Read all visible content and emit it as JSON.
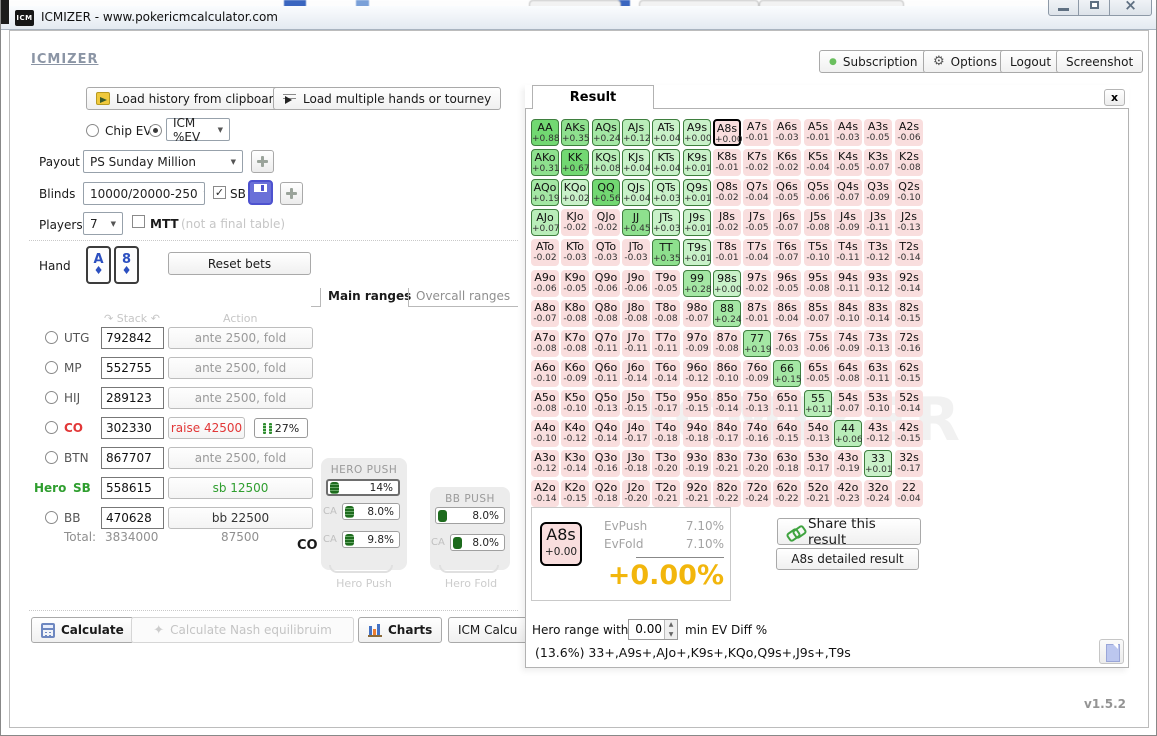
{
  "window": {
    "title": "ICMIZER - www.pokericmcalculator.com",
    "icon": "ICM",
    "version": "v1.5.2"
  },
  "header": {
    "logo": "ICMIZER",
    "subscription": "Subscription",
    "options": "Options",
    "logout": "Logout",
    "screenshot": "Screenshot"
  },
  "toolbar": {
    "load_history": "Load history from clipboard",
    "load_multiple": "Load multiple hands or tourney"
  },
  "settings": {
    "chip_ev": "Chip EV",
    "icm_ev": "ICM %EV",
    "payout_label": "Payout",
    "payout_value": "PS Sunday Million",
    "blinds_label": "Blinds",
    "blinds_value": "10000/20000-250",
    "sb": "SB",
    "players_label": "Players",
    "players_value": "7",
    "mtt": "MTT",
    "mtt_note": "(not a final table)"
  },
  "hand": {
    "label": "Hand",
    "cards": [
      {
        "rank": "A",
        "suit": "♦"
      },
      {
        "rank": "8",
        "suit": "♦"
      }
    ],
    "reset": "Reset bets"
  },
  "range_tabs": {
    "main": "Main ranges",
    "overcall": "Overcall ranges"
  },
  "table": {
    "stack_header": "Stack",
    "action_header": "Action",
    "rows": [
      {
        "pos": "UTG",
        "stack": "792842",
        "action": "ante 2500, fold",
        "kind": "fold",
        "radio": true
      },
      {
        "pos": "MP",
        "stack": "552755",
        "action": "ante 2500, fold",
        "kind": "fold",
        "radio": true
      },
      {
        "pos": "HIJ",
        "stack": "289123",
        "action": "ante 2500, fold",
        "kind": "fold",
        "radio": true
      },
      {
        "pos": "CO",
        "stack": "302330",
        "action": "raise 42500",
        "kind": "raise",
        "radio": true,
        "pct": "27%"
      },
      {
        "pos": "BTN",
        "stack": "867707",
        "action": "ante 2500, fold",
        "kind": "fold",
        "radio": true
      },
      {
        "pos": "SB",
        "prefix": "Hero",
        "stack": "558615",
        "action": "sb 12500",
        "kind": "hero",
        "radio": false
      },
      {
        "pos": "BB",
        "stack": "470628",
        "action": "bb 22500",
        "kind": "bb",
        "radio": true
      }
    ],
    "total_label": "Total:",
    "total_stack": "3834000",
    "total_bets": "87500"
  },
  "push": {
    "co": "CO",
    "hero_title": "HERO PUSH",
    "hero_main": "14%",
    "hero_rows": [
      {
        "label": "CA",
        "value": "8.0%"
      },
      {
        "label": "CA",
        "value": "9.8%"
      }
    ],
    "bb_title": "BB PUSH",
    "bb_main": "8.0%",
    "bb_rows": [
      {
        "label": "CA",
        "value": "8.0%"
      }
    ],
    "caption_push": "Hero Push",
    "caption_fold": "Hero Fold"
  },
  "footer": {
    "calculate": "Calculate",
    "nash": "Calculate Nash equilibruim",
    "charts": "Charts",
    "icm_calc": "ICM Calcu"
  },
  "result": {
    "tab": "Result",
    "close": "x",
    "selected": "A8s",
    "watermark": "ICMIZER",
    "grid": [
      [
        [
          "AA",
          "+0.88"
        ],
        [
          "AKs",
          "+0.35"
        ],
        [
          "AQs",
          "+0.24"
        ],
        [
          "AJs",
          "+0.12"
        ],
        [
          "ATs",
          "+0.04"
        ],
        [
          "A9s",
          "+0.00"
        ],
        [
          "A8s",
          "+0.00"
        ],
        [
          "A7s",
          "-0.01"
        ],
        [
          "A6s",
          "-0.03"
        ],
        [
          "A5s",
          "-0.01"
        ],
        [
          "A4s",
          "-0.03"
        ],
        [
          "A3s",
          "-0.05"
        ],
        [
          "A2s",
          "-0.06"
        ]
      ],
      [
        [
          "AKo",
          "+0.31"
        ],
        [
          "KK",
          "+0.67"
        ],
        [
          "KQs",
          "+0.08"
        ],
        [
          "KJs",
          "+0.04"
        ],
        [
          "KTs",
          "+0.04"
        ],
        [
          "K9s",
          "+0.01"
        ],
        [
          "K8s",
          "-0.01"
        ],
        [
          "K7s",
          "-0.02"
        ],
        [
          "K6s",
          "-0.02"
        ],
        [
          "K5s",
          "-0.04"
        ],
        [
          "K4s",
          "-0.05"
        ],
        [
          "K3s",
          "-0.07"
        ],
        [
          "K2s",
          "-0.08"
        ]
      ],
      [
        [
          "AQo",
          "+0.19"
        ],
        [
          "KQo",
          "+0.02"
        ],
        [
          "QQ",
          "+0.56"
        ],
        [
          "QJs",
          "+0.04"
        ],
        [
          "QTs",
          "+0.03"
        ],
        [
          "Q9s",
          "+0.01"
        ],
        [
          "Q8s",
          "-0.02"
        ],
        [
          "Q7s",
          "-0.04"
        ],
        [
          "Q6s",
          "-0.05"
        ],
        [
          "Q5s",
          "-0.06"
        ],
        [
          "Q4s",
          "-0.07"
        ],
        [
          "Q3s",
          "-0.09"
        ],
        [
          "Q2s",
          "-0.10"
        ]
      ],
      [
        [
          "AJo",
          "+0.07"
        ],
        [
          "KJo",
          "-0.02"
        ],
        [
          "QJo",
          "-0.02"
        ],
        [
          "JJ",
          "+0.45"
        ],
        [
          "JTs",
          "+0.03"
        ],
        [
          "J9s",
          "+0.01"
        ],
        [
          "J8s",
          "-0.02"
        ],
        [
          "J7s",
          "-0.05"
        ],
        [
          "J6s",
          "-0.07"
        ],
        [
          "J5s",
          "-0.08"
        ],
        [
          "J4s",
          "-0.09"
        ],
        [
          "J3s",
          "-0.11"
        ],
        [
          "J2s",
          "-0.13"
        ]
      ],
      [
        [
          "ATo",
          "-0.02"
        ],
        [
          "KTo",
          "-0.03"
        ],
        [
          "QTo",
          "-0.03"
        ],
        [
          "JTo",
          "-0.03"
        ],
        [
          "TT",
          "+0.35"
        ],
        [
          "T9s",
          "+0.01"
        ],
        [
          "T8s",
          "-0.01"
        ],
        [
          "T7s",
          "-0.04"
        ],
        [
          "T6s",
          "-0.07"
        ],
        [
          "T5s",
          "-0.10"
        ],
        [
          "T4s",
          "-0.11"
        ],
        [
          "T3s",
          "-0.12"
        ],
        [
          "T2s",
          "-0.14"
        ]
      ],
      [
        [
          "A9o",
          "-0.06"
        ],
        [
          "K9o",
          "-0.05"
        ],
        [
          "Q9o",
          "-0.06"
        ],
        [
          "J9o",
          "-0.06"
        ],
        [
          "T9o",
          "-0.05"
        ],
        [
          "99",
          "+0.28"
        ],
        [
          "98s",
          "+0.00"
        ],
        [
          "97s",
          "-0.02"
        ],
        [
          "96s",
          "-0.05"
        ],
        [
          "95s",
          "-0.08"
        ],
        [
          "94s",
          "-0.11"
        ],
        [
          "93s",
          "-0.12"
        ],
        [
          "92s",
          "-0.14"
        ]
      ],
      [
        [
          "A8o",
          "-0.07"
        ],
        [
          "K8o",
          "-0.08"
        ],
        [
          "Q8o",
          "-0.08"
        ],
        [
          "J8o",
          "-0.08"
        ],
        [
          "T8o",
          "-0.08"
        ],
        [
          "98o",
          "-0.07"
        ],
        [
          "88",
          "+0.24"
        ],
        [
          "87s",
          "-0.01"
        ],
        [
          "86s",
          "-0.04"
        ],
        [
          "85s",
          "-0.07"
        ],
        [
          "84s",
          "-0.10"
        ],
        [
          "83s",
          "-0.14"
        ],
        [
          "82s",
          "-0.15"
        ]
      ],
      [
        [
          "A7o",
          "-0.08"
        ],
        [
          "K7o",
          "-0.08"
        ],
        [
          "Q7o",
          "-0.11"
        ],
        [
          "J7o",
          "-0.11"
        ],
        [
          "T7o",
          "-0.11"
        ],
        [
          "97o",
          "-0.09"
        ],
        [
          "87o",
          "-0.08"
        ],
        [
          "77",
          "+0.19"
        ],
        [
          "76s",
          "-0.03"
        ],
        [
          "75s",
          "-0.06"
        ],
        [
          "74s",
          "-0.09"
        ],
        [
          "73s",
          "-0.13"
        ],
        [
          "72s",
          "-0.16"
        ]
      ],
      [
        [
          "A6o",
          "-0.10"
        ],
        [
          "K6o",
          "-0.09"
        ],
        [
          "Q6o",
          "-0.11"
        ],
        [
          "J6o",
          "-0.14"
        ],
        [
          "T6o",
          "-0.14"
        ],
        [
          "96o",
          "-0.12"
        ],
        [
          "86o",
          "-0.10"
        ],
        [
          "76o",
          "-0.09"
        ],
        [
          "66",
          "+0.15"
        ],
        [
          "65s",
          "-0.05"
        ],
        [
          "64s",
          "-0.08"
        ],
        [
          "63s",
          "-0.11"
        ],
        [
          "62s",
          "-0.15"
        ]
      ],
      [
        [
          "A5o",
          "-0.08"
        ],
        [
          "K5o",
          "-0.10"
        ],
        [
          "Q5o",
          "-0.13"
        ],
        [
          "J5o",
          "-0.15"
        ],
        [
          "T5o",
          "-0.17"
        ],
        [
          "95o",
          "-0.15"
        ],
        [
          "85o",
          "-0.14"
        ],
        [
          "75o",
          "-0.13"
        ],
        [
          "65o",
          "-0.11"
        ],
        [
          "55",
          "+0.11"
        ],
        [
          "54s",
          "-0.07"
        ],
        [
          "53s",
          "-0.10"
        ],
        [
          "52s",
          "-0.14"
        ]
      ],
      [
        [
          "A4o",
          "-0.10"
        ],
        [
          "K4o",
          "-0.12"
        ],
        [
          "Q4o",
          "-0.14"
        ],
        [
          "J4o",
          "-0.17"
        ],
        [
          "T4o",
          "-0.18"
        ],
        [
          "94o",
          "-0.18"
        ],
        [
          "84o",
          "-0.17"
        ],
        [
          "74o",
          "-0.16"
        ],
        [
          "64o",
          "-0.15"
        ],
        [
          "54o",
          "-0.13"
        ],
        [
          "44",
          "+0.06"
        ],
        [
          "43s",
          "-0.12"
        ],
        [
          "42s",
          "-0.15"
        ]
      ],
      [
        [
          "A3o",
          "-0.12"
        ],
        [
          "K3o",
          "-0.14"
        ],
        [
          "Q3o",
          "-0.16"
        ],
        [
          "J3o",
          "-0.18"
        ],
        [
          "T3o",
          "-0.20"
        ],
        [
          "93o",
          "-0.19"
        ],
        [
          "83o",
          "-0.21"
        ],
        [
          "73o",
          "-0.20"
        ],
        [
          "63o",
          "-0.18"
        ],
        [
          "53o",
          "-0.17"
        ],
        [
          "43o",
          "-0.19"
        ],
        [
          "33",
          "+0.01"
        ],
        [
          "32s",
          "-0.17"
        ]
      ],
      [
        [
          "A2o",
          "-0.14"
        ],
        [
          "K2o",
          "-0.15"
        ],
        [
          "Q2o",
          "-0.18"
        ],
        [
          "J2o",
          "-0.20"
        ],
        [
          "T2o",
          "-0.21"
        ],
        [
          "92o",
          "-0.21"
        ],
        [
          "82o",
          "-0.22"
        ],
        [
          "72o",
          "-0.24"
        ],
        [
          "62o",
          "-0.22"
        ],
        [
          "52o",
          "-0.21"
        ],
        [
          "42o",
          "-0.23"
        ],
        [
          "32o",
          "-0.24"
        ],
        [
          "22",
          "-0.04"
        ]
      ]
    ],
    "detail": {
      "hand": "A8s",
      "hand_ev": "+0.00",
      "evpush_label": "EvPush",
      "evpush_value": "7.10%",
      "evfold_label": "EvFold",
      "evfold_value": "7.10%",
      "diff": "+0.00%"
    },
    "share": "Share this result",
    "detailed": "A8s detailed result",
    "range_prefix": "Hero range with",
    "range_spin": "0.00",
    "range_suffix": "min EV Diff %",
    "range_text": "(13.6%) 33+,A9s+,AJo+,K9s+,KQo,Q9s+,J9s+,T9s"
  },
  "icons": {
    "dropdown": "▼",
    "check": "✓",
    "gear": "⚙",
    "dot": "●",
    "star": "✦",
    "close": "×",
    "up": "▲",
    "down": "▼",
    "sort_left": "↷",
    "sort_right": "↶"
  },
  "colors": {
    "positive_border": "#3f7f3f",
    "negative_bg": "#f9dede",
    "raise_red": "#e23737",
    "hero_green": "#2f9e2f",
    "diff_orange": "#f2b60c",
    "bar_green": "#1d6b1d"
  }
}
